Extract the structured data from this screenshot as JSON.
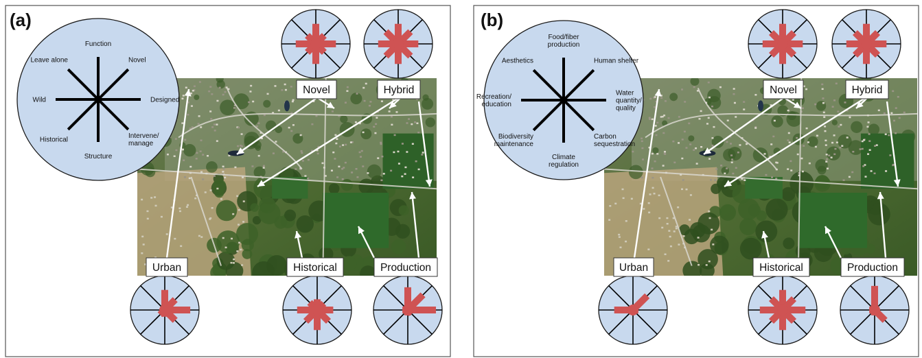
{
  "colors": {
    "circle_fill": "#c8d9ee",
    "petal": "#cf5353",
    "spoke": "#000000",
    "frame": "#555555"
  },
  "panels": [
    {
      "letter": "(a)",
      "axes": [
        {
          "label": "Function",
          "lines": [
            "Function"
          ]
        },
        {
          "label": "Novel",
          "lines": [
            "Novel"
          ]
        },
        {
          "label": "Designed",
          "lines": [
            "Designed"
          ]
        },
        {
          "label": "Intervene/ manage",
          "lines": [
            "Intervene/",
            "manage"
          ]
        },
        {
          "label": "Structure",
          "lines": [
            "Structure"
          ]
        },
        {
          "label": "Historical",
          "lines": [
            "Historical"
          ]
        },
        {
          "label": "Wild",
          "lines": [
            "Wild"
          ]
        },
        {
          "label": "Leave alone",
          "lines": [
            "Leave alone"
          ]
        }
      ],
      "types": [
        {
          "label": "Novel",
          "values": [
            0.75,
            0.45,
            0.75,
            0.45,
            0.75,
            0.45,
            0.75,
            0.45
          ]
        },
        {
          "label": "Hybrid",
          "values": [
            0.75,
            0.65,
            0.75,
            0.65,
            0.75,
            0.65,
            0.75,
            0.65
          ]
        },
        {
          "label": "Urban",
          "values": [
            0.75,
            0.55,
            0.95,
            0.55,
            0.25,
            0.25,
            0.15,
            0.15
          ]
        },
        {
          "label": "Historical",
          "values": [
            0.4,
            0.35,
            0.6,
            0.6,
            0.75,
            0.6,
            0.75,
            0.4
          ]
        },
        {
          "label": "Production",
          "values": [
            0.85,
            0.8,
            1.05,
            0.2,
            0.2,
            0.15,
            0.2,
            0.15
          ]
        }
      ]
    },
    {
      "letter": "(b)",
      "axes": [
        {
          "label": "Food/fiber production",
          "lines": [
            "Food/fiber",
            "production"
          ]
        },
        {
          "label": "Human shelter",
          "lines": [
            "Human shelter"
          ]
        },
        {
          "label": "Water quantity/ quality",
          "lines": [
            "Water",
            "quantity/",
            "quality"
          ]
        },
        {
          "label": "Carbon sequestration",
          "lines": [
            "Carbon",
            "sequestration"
          ]
        },
        {
          "label": "Climate regulation",
          "lines": [
            "Climate",
            "regulation"
          ]
        },
        {
          "label": "Biodiversity maintenance",
          "lines": [
            "Biodiversity",
            "maintenance"
          ]
        },
        {
          "label": "Recreation/ education",
          "lines": [
            "Recreation/",
            "education"
          ]
        },
        {
          "label": "Aesthetics",
          "lines": [
            "Aesthetics"
          ]
        }
      ],
      "types": [
        {
          "label": "Novel",
          "values": [
            0.75,
            0.6,
            0.75,
            0.6,
            0.75,
            0.6,
            0.75,
            0.6
          ]
        },
        {
          "label": "Hybrid",
          "values": [
            0.75,
            0.6,
            0.75,
            0.6,
            0.75,
            0.6,
            0.75,
            0.6
          ]
        },
        {
          "label": "Urban",
          "values": [
            0.15,
            0.75,
            0.2,
            0.15,
            0.15,
            0.15,
            0.7,
            0.15
          ]
        },
        {
          "label": "Historical",
          "values": [
            0.75,
            0.6,
            0.85,
            0.6,
            0.75,
            0.6,
            0.85,
            0.6
          ]
        },
        {
          "label": "Production",
          "values": [
            0.9,
            0.15,
            0.15,
            0.55,
            0.2,
            0.15,
            0.2,
            0.15
          ]
        }
      ]
    }
  ]
}
